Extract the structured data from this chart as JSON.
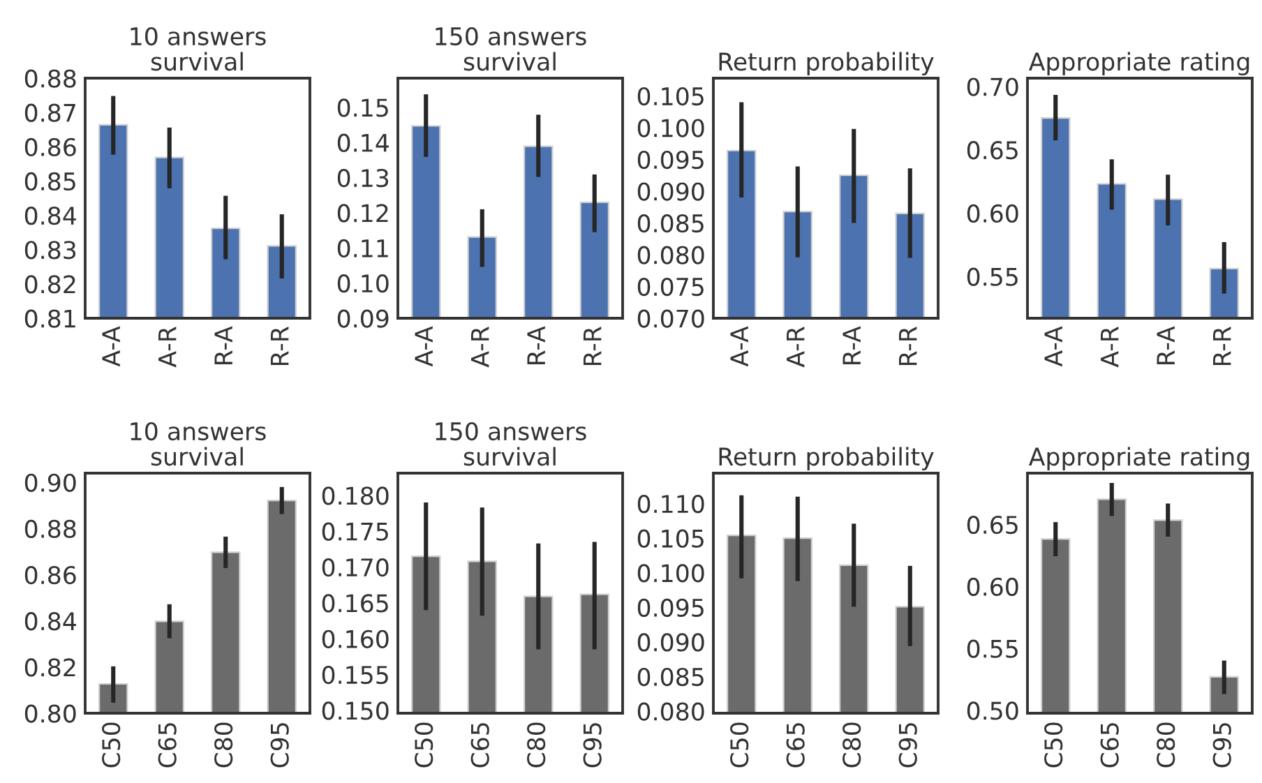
{
  "chart_data": [
    {
      "type": "bar",
      "title": "10 answers\nsurvival",
      "categories": [
        "A-A",
        "A-R",
        "R-A",
        "R-R"
      ],
      "values": [
        0.8664,
        0.8569,
        0.8362,
        0.8311
      ],
      "errors": [
        [
          0.8577,
          0.8748
        ],
        [
          0.8479,
          0.8656
        ],
        [
          0.8272,
          0.8457
        ],
        [
          0.8216,
          0.8403
        ]
      ],
      "color": "#4c72b0",
      "ylim": [
        0.81,
        0.88
      ],
      "yticks": [
        0.81,
        0.82,
        0.83,
        0.84,
        0.85,
        0.86,
        0.87,
        0.88
      ],
      "grid": false,
      "legend": false
    },
    {
      "type": "bar",
      "title": "150 answers\nsurvival",
      "categories": [
        "A-A",
        "A-R",
        "R-A",
        "R-R"
      ],
      "values": [
        0.1447,
        0.1131,
        0.1389,
        0.123
      ],
      "errors": [
        [
          0.1359,
          0.1537
        ],
        [
          0.1046,
          0.121
        ],
        [
          0.1302,
          0.1479
        ],
        [
          0.1145,
          0.1309
        ]
      ],
      "color": "#4c72b0",
      "ylim": [
        0.09,
        0.1583
      ],
      "yticks": [
        0.09,
        {
          "value": 0.1,
          "label": "0.10"
        },
        0.11,
        0.12,
        0.13,
        0.14,
        0.15
      ],
      "grid": false,
      "legend": false
    },
    {
      "type": "bar",
      "title": "Return probability",
      "categories": [
        "A-A",
        "A-R",
        "R-A",
        "R-R"
      ],
      "values": [
        0.0964,
        0.0868,
        0.0925,
        0.0865
      ],
      "errors": [
        [
          0.089,
          0.104
        ],
        [
          0.0796,
          0.0939
        ],
        [
          0.085,
          0.0998
        ],
        [
          0.0795,
          0.0936
        ]
      ],
      "color": "#4c72b0",
      "ylim": [
        0.07,
        0.1078
      ],
      "yticks": [
        {
          "value": 0.07,
          "label": "0.070"
        },
        0.075,
        {
          "value": 0.08,
          "label": "0.080"
        },
        0.085,
        {
          "value": 0.09,
          "label": "0.090"
        },
        0.095,
        {
          "value": 0.1,
          "label": "0.100"
        },
        0.105
      ],
      "grid": false,
      "legend": false
    },
    {
      "type": "bar",
      "title": "Appropriate rating",
      "categories": [
        "A-A",
        "A-R",
        "R-A",
        "R-R"
      ],
      "values": [
        0.6751,
        0.6231,
        0.611,
        0.5562
      ],
      "errors": [
        [
          0.6575,
          0.6934
        ],
        [
          0.6027,
          0.6425
        ],
        [
          0.5903,
          0.6304
        ],
        [
          0.5365,
          0.5771
        ]
      ],
      "color": "#4c72b0",
      "ylim": [
        0.517,
        0.7066
      ],
      "yticks": [
        0.55,
        {
          "value": 0.6,
          "label": "0.60"
        },
        0.65,
        {
          "value": 0.7,
          "label": "0.70"
        }
      ],
      "grid": false,
      "legend": false
    },
    {
      "type": "bar",
      "title": "10 answers\nsurvival",
      "categories": [
        "C50",
        "C65",
        "C80",
        "C95"
      ],
      "values": [
        0.8127,
        0.8398,
        0.8697,
        0.8922
      ],
      "errors": [
        [
          0.8046,
          0.8203
        ],
        [
          0.8325,
          0.8472
        ],
        [
          0.8629,
          0.8765
        ],
        [
          0.8863,
          0.898
        ]
      ],
      "color": "#6b6b6b",
      "ylim": [
        0.8,
        0.904
      ],
      "yticks": [
        {
          "value": 0.8,
          "label": "0.80"
        },
        0.82,
        0.84,
        0.86,
        0.88,
        {
          "value": 0.9,
          "label": "0.90"
        }
      ],
      "grid": false,
      "legend": false
    },
    {
      "type": "bar",
      "title": "150 answers\nsurvival",
      "categories": [
        "C50",
        "C65",
        "C80",
        "C95"
      ],
      "values": [
        0.1715,
        0.1708,
        0.1659,
        0.1662
      ],
      "errors": [
        [
          0.164,
          0.179
        ],
        [
          0.1632,
          0.1783
        ],
        [
          0.1585,
          0.1733
        ],
        [
          0.1585,
          0.1735
        ]
      ],
      "color": "#6b6b6b",
      "ylim": [
        0.1496,
        0.1831
      ],
      "yticks": [
        {
          "value": 0.15,
          "label": "0.150"
        },
        0.155,
        {
          "value": 0.16,
          "label": "0.160"
        },
        0.165,
        {
          "value": 0.17,
          "label": "0.170"
        },
        0.175,
        {
          "value": 0.18,
          "label": "0.180"
        }
      ],
      "grid": false,
      "legend": false
    },
    {
      "type": "bar",
      "title": "Return probability",
      "categories": [
        "C50",
        "C65",
        "C80",
        "C95"
      ],
      "values": [
        0.1054,
        0.105,
        0.1011,
        0.0951
      ],
      "errors": [
        [
          0.0992,
          0.1112
        ],
        [
          0.0988,
          0.111
        ],
        [
          0.0951,
          0.1071
        ],
        [
          0.0894,
          0.101
        ]
      ],
      "color": "#6b6b6b",
      "ylim": [
        0.0797,
        0.1144
      ],
      "yticks": [
        {
          "value": 0.08,
          "label": "0.080"
        },
        0.085,
        {
          "value": 0.09,
          "label": "0.090"
        },
        0.095,
        {
          "value": 0.1,
          "label": "0.100"
        },
        0.105,
        {
          "value": 0.11,
          "label": "0.110"
        }
      ],
      "grid": false,
      "legend": false
    },
    {
      "type": "bar",
      "title": "Appropriate rating",
      "categories": [
        "C50",
        "C65",
        "C80",
        "C95"
      ],
      "values": [
        0.6383,
        0.6703,
        0.6534,
        0.5271
      ],
      "errors": [
        [
          0.6244,
          0.6519
        ],
        [
          0.6568,
          0.6835
        ],
        [
          0.6402,
          0.6669
        ],
        [
          0.5132,
          0.5402
        ]
      ],
      "color": "#6b6b6b",
      "ylim": [
        0.4977,
        0.6914
      ],
      "yticks": [
        {
          "value": 0.5,
          "label": "0.50"
        },
        0.55,
        {
          "value": 0.6,
          "label": "0.60"
        },
        0.65
      ],
      "grid": false,
      "legend": false
    }
  ]
}
